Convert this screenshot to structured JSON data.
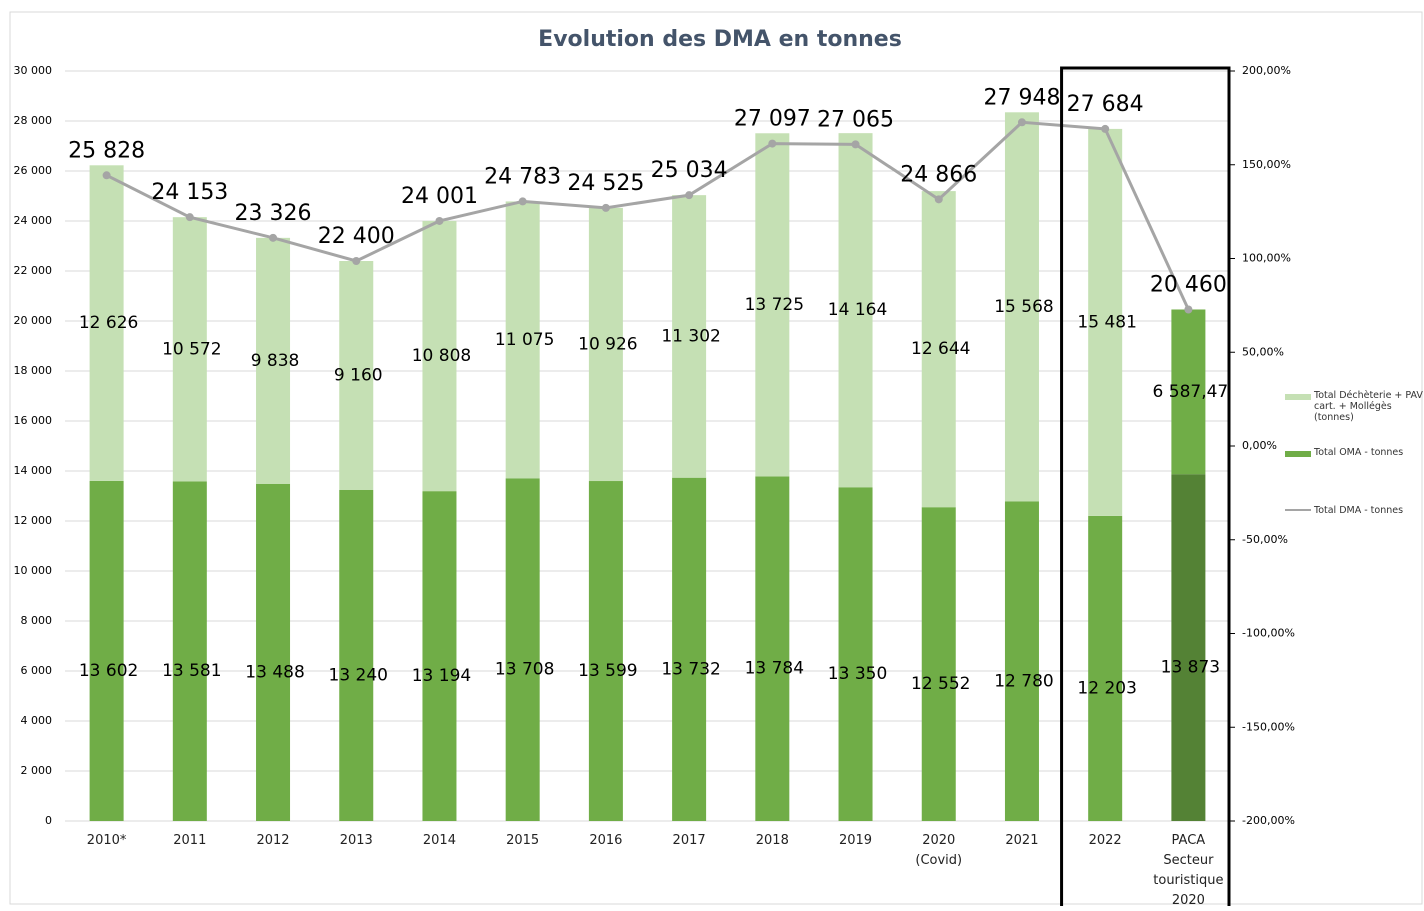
{
  "chart_data": {
    "type": "bar",
    "stacked": true,
    "title": "Evolution des DMA en tonnes",
    "categories": [
      "2010*",
      "2011",
      "2012",
      "2013",
      "2014",
      "2015",
      "2016",
      "2017",
      "2018",
      "2019",
      "2020 (Covid)",
      "2021",
      "2022",
      "PACA Secteur touristique 2020"
    ],
    "series": [
      {
        "name": "Total OMA - tonnes",
        "type": "bar",
        "color": "#70ad47",
        "colors": [
          "#70ad47",
          "#70ad47",
          "#70ad47",
          "#70ad47",
          "#70ad47",
          "#70ad47",
          "#70ad47",
          "#70ad47",
          "#70ad47",
          "#70ad47",
          "#70ad47",
          "#70ad47",
          "#70ad47",
          "#548235"
        ],
        "values": [
          13602,
          13581,
          13488,
          13240,
          13194,
          13708,
          13599,
          13732,
          13784,
          13350,
          12552,
          12780,
          12203,
          13873
        ],
        "value_labels": [
          "13 602",
          "13 581",
          "13 488",
          "13 240",
          "13 194",
          "13 708",
          "13 599",
          "13 732",
          "13 784",
          "13 350",
          "12 552",
          "12 780",
          "12 203",
          "13 873"
        ]
      },
      {
        "name": "Total Déchèterie + PAV cart. + Mollégès (tonnes)",
        "type": "bar",
        "color": "#c5e0b4",
        "colors": [
          "#c5e0b4",
          "#c5e0b4",
          "#c5e0b4",
          "#c5e0b4",
          "#c5e0b4",
          "#c5e0b4",
          "#c5e0b4",
          "#c5e0b4",
          "#c5e0b4",
          "#c5e0b4",
          "#c5e0b4",
          "#c5e0b4",
          "#c5e0b4",
          "#70ad47"
        ],
        "values": [
          12626,
          10572,
          9838,
          9160,
          10808,
          11075,
          10926,
          11302,
          13725,
          14164,
          12644,
          15568,
          15481,
          6587.47
        ],
        "value_labels": [
          "12 626",
          "10 572",
          "9 838",
          "9 160",
          "10 808",
          "11 075",
          "10 926",
          "11 302",
          "13 725",
          "14 164",
          "12 644",
          "15 568",
          "15 481",
          "6 587,47"
        ]
      },
      {
        "name": "Total DMA - tonnes",
        "type": "line",
        "color": "#a5a5a5",
        "values": [
          25828,
          24153,
          23326,
          22400,
          24001,
          24783,
          24525,
          25034,
          27097,
          27065,
          24866,
          27948,
          27684,
          20460
        ],
        "value_labels": [
          "25 828",
          "24 153",
          "23 326",
          "22 400",
          "24 001",
          "24 783",
          "24 525",
          "25 034",
          "27 097",
          "27 065",
          "24 866",
          "27 948",
          "27 684",
          "20 460"
        ]
      }
    ],
    "ylim": [
      0,
      30000
    ],
    "yticks": [
      0,
      {
        "value": 2000,
        "label": "2 000"
      },
      {
        "value": 4000,
        "label": "4 000"
      },
      {
        "value": 6000,
        "label": "6 000"
      },
      {
        "value": 8000,
        "label": "8 000"
      },
      {
        "value": 10000,
        "label": "10 000"
      },
      {
        "value": 12000,
        "label": "12 000"
      },
      {
        "value": 14000,
        "label": "14 000"
      },
      {
        "value": 16000,
        "label": "16 000"
      },
      {
        "value": 18000,
        "label": "18 000"
      },
      {
        "value": 20000,
        "label": "20 000"
      },
      {
        "value": 22000,
        "label": "22 000"
      },
      {
        "value": 24000,
        "label": "24 000"
      },
      {
        "value": 26000,
        "label": "26 000"
      },
      {
        "value": 28000,
        "label": "28 000"
      },
      {
        "value": 30000,
        "label": "30 000"
      }
    ],
    "y2lim": [
      -200,
      200
    ],
    "y2ticks": [
      {
        "value": -200,
        "label": "-200,00%"
      },
      {
        "value": -150,
        "label": "-150,00%"
      },
      {
        "value": -100,
        "label": "-100,00%"
      },
      {
        "value": -50,
        "label": "-50,00%"
      },
      {
        "value": 0,
        "label": "0,00%"
      },
      {
        "value": 50,
        "label": "50,00%"
      },
      {
        "value": 100,
        "label": "100,00%"
      },
      {
        "value": 150,
        "label": "150,00%"
      },
      {
        "value": 200,
        "label": "200,00%"
      }
    ],
    "grid": true,
    "legend": "right"
  }
}
